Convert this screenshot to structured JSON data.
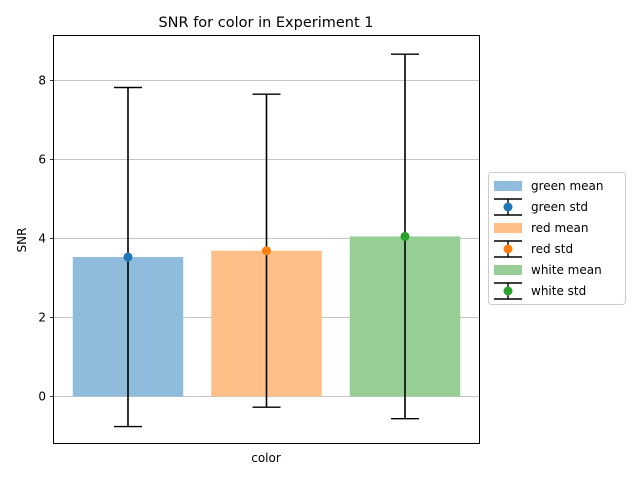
{
  "chart_data": {
    "type": "bar",
    "title": "SNR for color in Experiment 1",
    "xlabel": "color",
    "ylabel": "SNR",
    "ylim": [
      -1.2,
      9.1
    ],
    "yticks": [
      0,
      2,
      4,
      6,
      8
    ],
    "grid": "horizontal",
    "legend_position": "right",
    "categories": [
      "green",
      "red",
      "white"
    ],
    "series": [
      {
        "name": "green  mean",
        "std_name": "green  std",
        "mean": 3.52,
        "std": 4.28,
        "bar_color": "#8fbbdd",
        "point_color": "#1f77b4"
      },
      {
        "name": "red  mean",
        "std_name": "red  std",
        "mean": 3.68,
        "std": 3.95,
        "bar_color": "#ffbf86",
        "point_color": "#ff7f0e"
      },
      {
        "name": "white  mean",
        "std_name": "white  std",
        "mean": 4.04,
        "std": 4.6,
        "bar_color": "#96ce96",
        "point_color": "#2ca02c"
      }
    ]
  }
}
